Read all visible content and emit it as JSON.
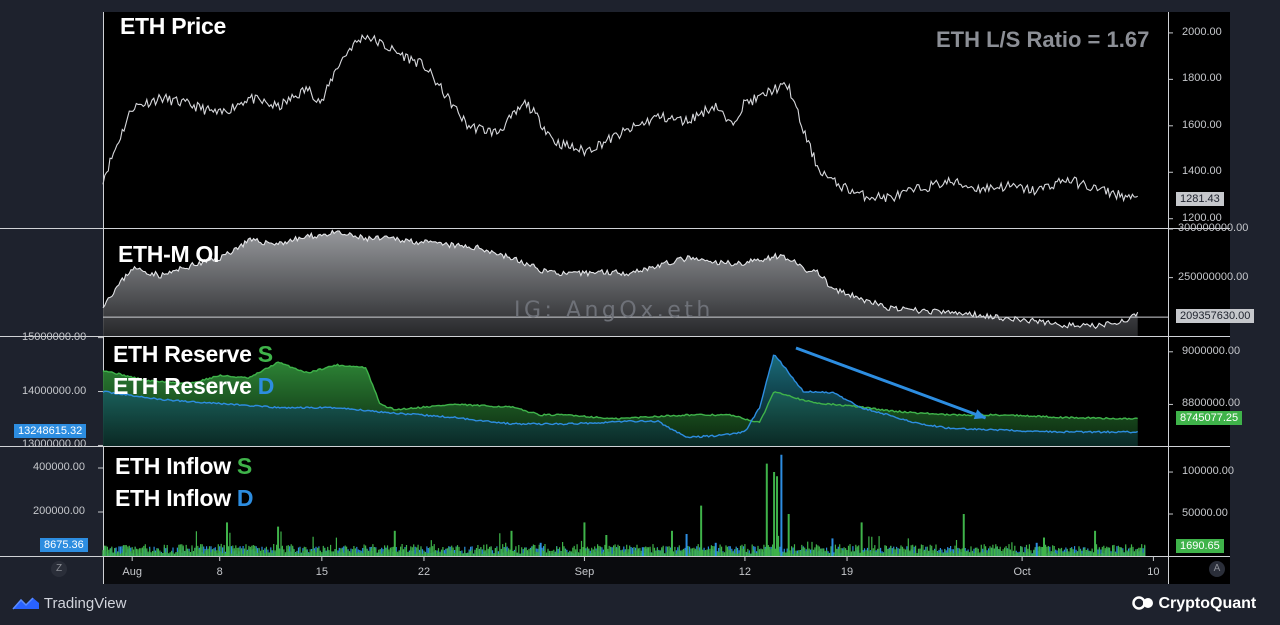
{
  "chart_data": [
    {
      "type": "line",
      "title": "ETH Price",
      "annotation": "ETH L/S Ratio = 1.67",
      "y_ticks": [
        "2000.00",
        "1800.00",
        "1600.00",
        "1400.00",
        "1200.00"
      ],
      "last_value": "1281.43",
      "ylim": [
        1160,
        2090
      ],
      "x_day": [
        0,
        2,
        4,
        6,
        8,
        10,
        12,
        14,
        15,
        16,
        17,
        18,
        20,
        22,
        25,
        27,
        29,
        31,
        33,
        36,
        38,
        40,
        42,
        43,
        44,
        45,
        46,
        47,
        48,
        49,
        50,
        52,
        54,
        56,
        58,
        60,
        62,
        64,
        66,
        68,
        71
      ],
      "values": [
        1370,
        1680,
        1720,
        1690,
        1650,
        1720,
        1680,
        1760,
        1700,
        1850,
        1940,
        1990,
        1920,
        1860,
        1600,
        1570,
        1700,
        1530,
        1490,
        1580,
        1640,
        1620,
        1690,
        1600,
        1700,
        1720,
        1760,
        1770,
        1580,
        1420,
        1360,
        1300,
        1290,
        1330,
        1360,
        1330,
        1340,
        1320,
        1370,
        1330,
        1281
      ]
    },
    {
      "type": "area",
      "title": "ETH-M OI",
      "y_ticks": [
        "300000000.00",
        "250000000.00"
      ],
      "last_value": "209357630.00",
      "ylim": [
        190000000,
        301000000
      ],
      "x_day": [
        0,
        2,
        4,
        6,
        8,
        10,
        12,
        14,
        16,
        18,
        20,
        22,
        24,
        26,
        28,
        30,
        32,
        34,
        36,
        38,
        40,
        42,
        44,
        46,
        47,
        48,
        49,
        50,
        52,
        54,
        56,
        58,
        60,
        62,
        64,
        66,
        68,
        70,
        71
      ],
      "values": [
        222000000,
        260000000,
        252000000,
        262000000,
        270000000,
        288000000,
        285000000,
        292000000,
        296000000,
        290000000,
        290000000,
        286000000,
        283000000,
        280000000,
        270000000,
        258000000,
        253000000,
        256000000,
        255000000,
        262000000,
        270000000,
        265000000,
        265000000,
        272000000,
        271000000,
        258000000,
        256000000,
        238000000,
        228000000,
        218000000,
        216000000,
        214000000,
        212000000,
        208000000,
        205000000,
        201000000,
        200000000,
        206000000,
        212000000
      ]
    },
    {
      "type": "area",
      "title": "ETH Reserve",
      "left_ticks": [
        "15000000.00",
        "14000000.00",
        "13000000.00"
      ],
      "right_ticks": [
        "9000000.00",
        "8800000.00"
      ],
      "left_last": "13248615.32",
      "right_last": "8745077.25",
      "left_ylim": [
        12990000,
        15030000
      ],
      "right_ylim": [
        8642000,
        9060000
      ],
      "series": [
        {
          "name": "S",
          "color": "#3fb34a",
          "axis": "right",
          "x_day": [
            0,
            3,
            6,
            8,
            10,
            12,
            14,
            16,
            18,
            19,
            20,
            24,
            28,
            30,
            32,
            35,
            38,
            40,
            43,
            45,
            46,
            47,
            48,
            49,
            50,
            52,
            54,
            58,
            62,
            66,
            71
          ],
          "values": [
            8930000,
            8890000,
            8880000,
            8910000,
            8900000,
            8960000,
            8920000,
            8950000,
            8940000,
            8800000,
            8780000,
            8800000,
            8790000,
            8760000,
            8760000,
            8745000,
            8755000,
            8760000,
            8760000,
            8730000,
            8850000,
            8835000,
            8815000,
            8805000,
            8800000,
            8790000,
            8775000,
            8760000,
            8760000,
            8750000,
            8745000
          ]
        },
        {
          "name": "D",
          "color": "#2d8de0",
          "axis": "left",
          "x_day": [
            0,
            4,
            8,
            12,
            16,
            20,
            24,
            28,
            32,
            36,
            38,
            40,
            42,
            44,
            45,
            46,
            47,
            48,
            50,
            52,
            54,
            56,
            58,
            60,
            62,
            64,
            66,
            68,
            71
          ],
          "values": [
            14000000,
            13850000,
            13780000,
            13700000,
            13700000,
            13600000,
            13520000,
            13400000,
            13400000,
            13450000,
            13450000,
            13150000,
            13180000,
            13250000,
            13700000,
            14700000,
            14350000,
            14000000,
            13980000,
            13700000,
            13550000,
            13400000,
            13320000,
            13300000,
            13280000,
            13260000,
            13250000,
            13250000,
            13248615
          ]
        }
      ]
    },
    {
      "type": "bar",
      "title": "ETH Inflow",
      "left_ticks": [
        "400000.00",
        "200000.00"
      ],
      "right_ticks": [
        "100000.00",
        "50000.00"
      ],
      "left_last": "8675.36",
      "right_last": "1690.65",
      "left_ylim": [
        0,
        500000
      ],
      "right_ylim": [
        0,
        131000
      ],
      "series": [
        {
          "name": "S",
          "color": "#3fb34a",
          "axis": "right",
          "spikes_day": [
            8.5,
            12,
            20,
            28,
            33,
            34.5,
            39,
            41,
            45.5,
            46,
            46.2,
            47,
            52,
            59,
            64.5,
            68
          ],
          "spikes_value": [
            40000,
            35000,
            30000,
            30000,
            40000,
            25000,
            30000,
            60000,
            110000,
            100000,
            95000,
            50000,
            40000,
            50000,
            22000,
            30000
          ]
        },
        {
          "name": "D",
          "color": "#2d8de0",
          "axis": "left",
          "spikes_day": [
            30,
            37,
            40,
            42,
            46.5,
            50,
            64
          ],
          "spikes_value": [
            60000,
            40000,
            100000,
            60000,
            460000,
            80000,
            60000
          ]
        }
      ]
    },
    {
      "x_ticks": [
        {
          "label": "Aug",
          "day": 2
        },
        {
          "label": "8",
          "day": 8
        },
        {
          "label": "15",
          "day": 15
        },
        {
          "label": "22",
          "day": 22
        },
        {
          "label": "Sep",
          "day": 33
        },
        {
          "label": "12",
          "day": 44
        },
        {
          "label": "19",
          "day": 51
        },
        {
          "label": "Oct",
          "day": 63
        },
        {
          "label": "10",
          "day": 72
        }
      ]
    }
  ],
  "footer": {
    "left_brand": "TradingView",
    "right_brand": "CryptoQuant",
    "corner_left": "Z",
    "corner_right": "A"
  },
  "watermark": "IG: AngOx.eth"
}
